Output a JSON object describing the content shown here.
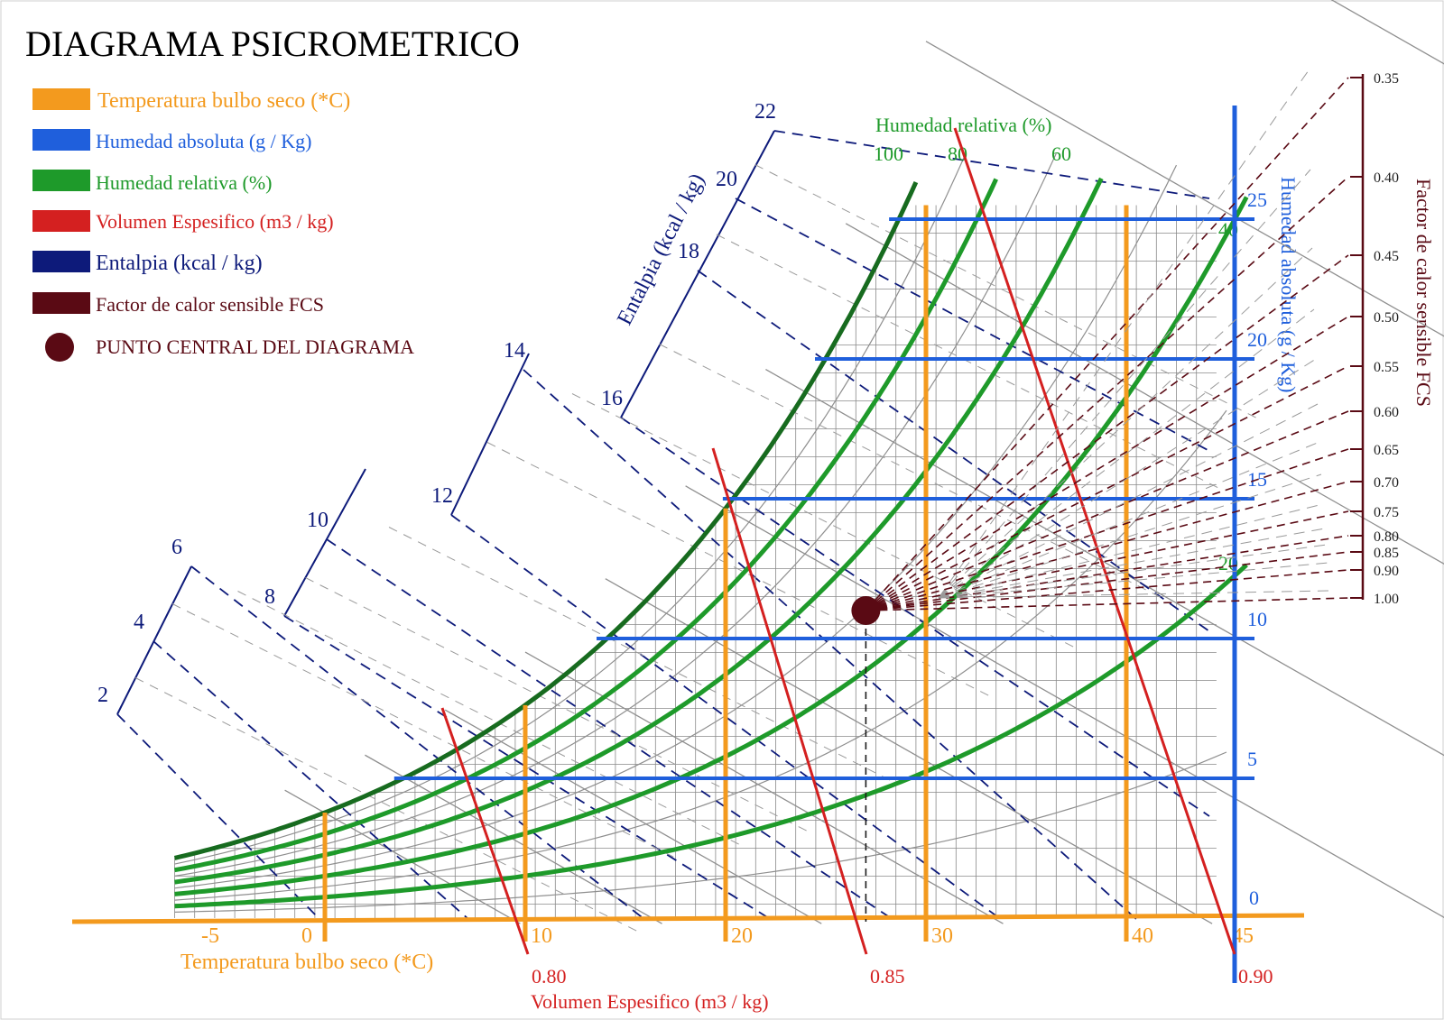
{
  "title": "DIAGRAMA PSICROMETRICO",
  "legend": [
    {
      "label": "Temperatura bulbo seco (*C)",
      "color": "#f39a1e"
    },
    {
      "label": "Humedad absoluta (g / Kg)",
      "color": "#1f5fdc"
    },
    {
      "label": "Humedad relativa (%)",
      "color": "#1e9a2a"
    },
    {
      "label": "Volumen Espesifico (m3 / kg)",
      "color": "#d42020"
    },
    {
      "label": "Entalpia (kcal / kg)",
      "color": "#0d1a7a"
    },
    {
      "label": "Factor de calor sensible FCS",
      "color": "#5a0a14"
    }
  ],
  "center_point_label": "PUNTO CENTRAL DEL DIAGRAMA",
  "colors": {
    "dry_bulb": "#f39a1e",
    "abs_humidity": "#1f5fdc",
    "rel_humidity": "#1e9a2a",
    "saturation": "#176b1f",
    "volume": "#d42020",
    "enthalpy": "#0d1a7a",
    "fcs": "#5a0a14",
    "grid": "#8a8a8a"
  },
  "axes": {
    "dry_bulb_title": "Temperatura bulbo seco (*C)",
    "abs_humidity_title": "Humedad absoluta (g / Kg)",
    "rel_humidity_title": "Humedad relativa (%)",
    "volume_title": "Volumen Espesifico (m3 / kg)",
    "enthalpy_title": "Entalpia (kcal / kg)",
    "fcs_title": "Factor de calor sensible FCS"
  },
  "diagram": {
    "dry_bulb_ticks": [
      "-5",
      "0",
      "10",
      "20",
      "30",
      "40",
      "45"
    ],
    "dry_bulb_lines": [
      0,
      10,
      20,
      30,
      40
    ],
    "abs_humidity_lines": [
      0,
      5,
      10,
      15,
      20,
      25
    ],
    "abs_humidity_labels": [
      "0",
      "5",
      "10",
      "15",
      "20",
      "25"
    ],
    "rel_humidity_curves": [
      100,
      80,
      60,
      40,
      20
    ],
    "rel_humidity_top_labels": [
      "100",
      "80",
      "60"
    ],
    "rel_humidity_right_labels": [
      "40",
      "20"
    ],
    "volume_lines": [
      0.8,
      0.85,
      0.9
    ],
    "volume_labels": [
      "0.80",
      "0.85",
      "0.90"
    ],
    "enthalpy_values": [
      2,
      4,
      6,
      8,
      10,
      12,
      14,
      16,
      18,
      20,
      22
    ],
    "enthalpy_labels": [
      "2",
      "4",
      "6",
      "8",
      "10",
      "12",
      "14",
      "16",
      "18",
      "20",
      "22"
    ],
    "fcs_values": [
      0.35,
      0.4,
      0.45,
      0.5,
      0.55,
      0.6,
      0.65,
      0.7,
      0.75,
      0.8,
      0.85,
      0.9,
      1.0
    ],
    "fcs_labels": [
      "0.35",
      "0.40",
      "0.45",
      "0.50",
      "0.55",
      "0.60",
      "0.65",
      "0.70",
      "0.75",
      "0.80",
      "0.85",
      "0.90",
      "1.00"
    ],
    "center_point": {
      "dry_bulb": 27,
      "abs_humidity": 11
    }
  }
}
